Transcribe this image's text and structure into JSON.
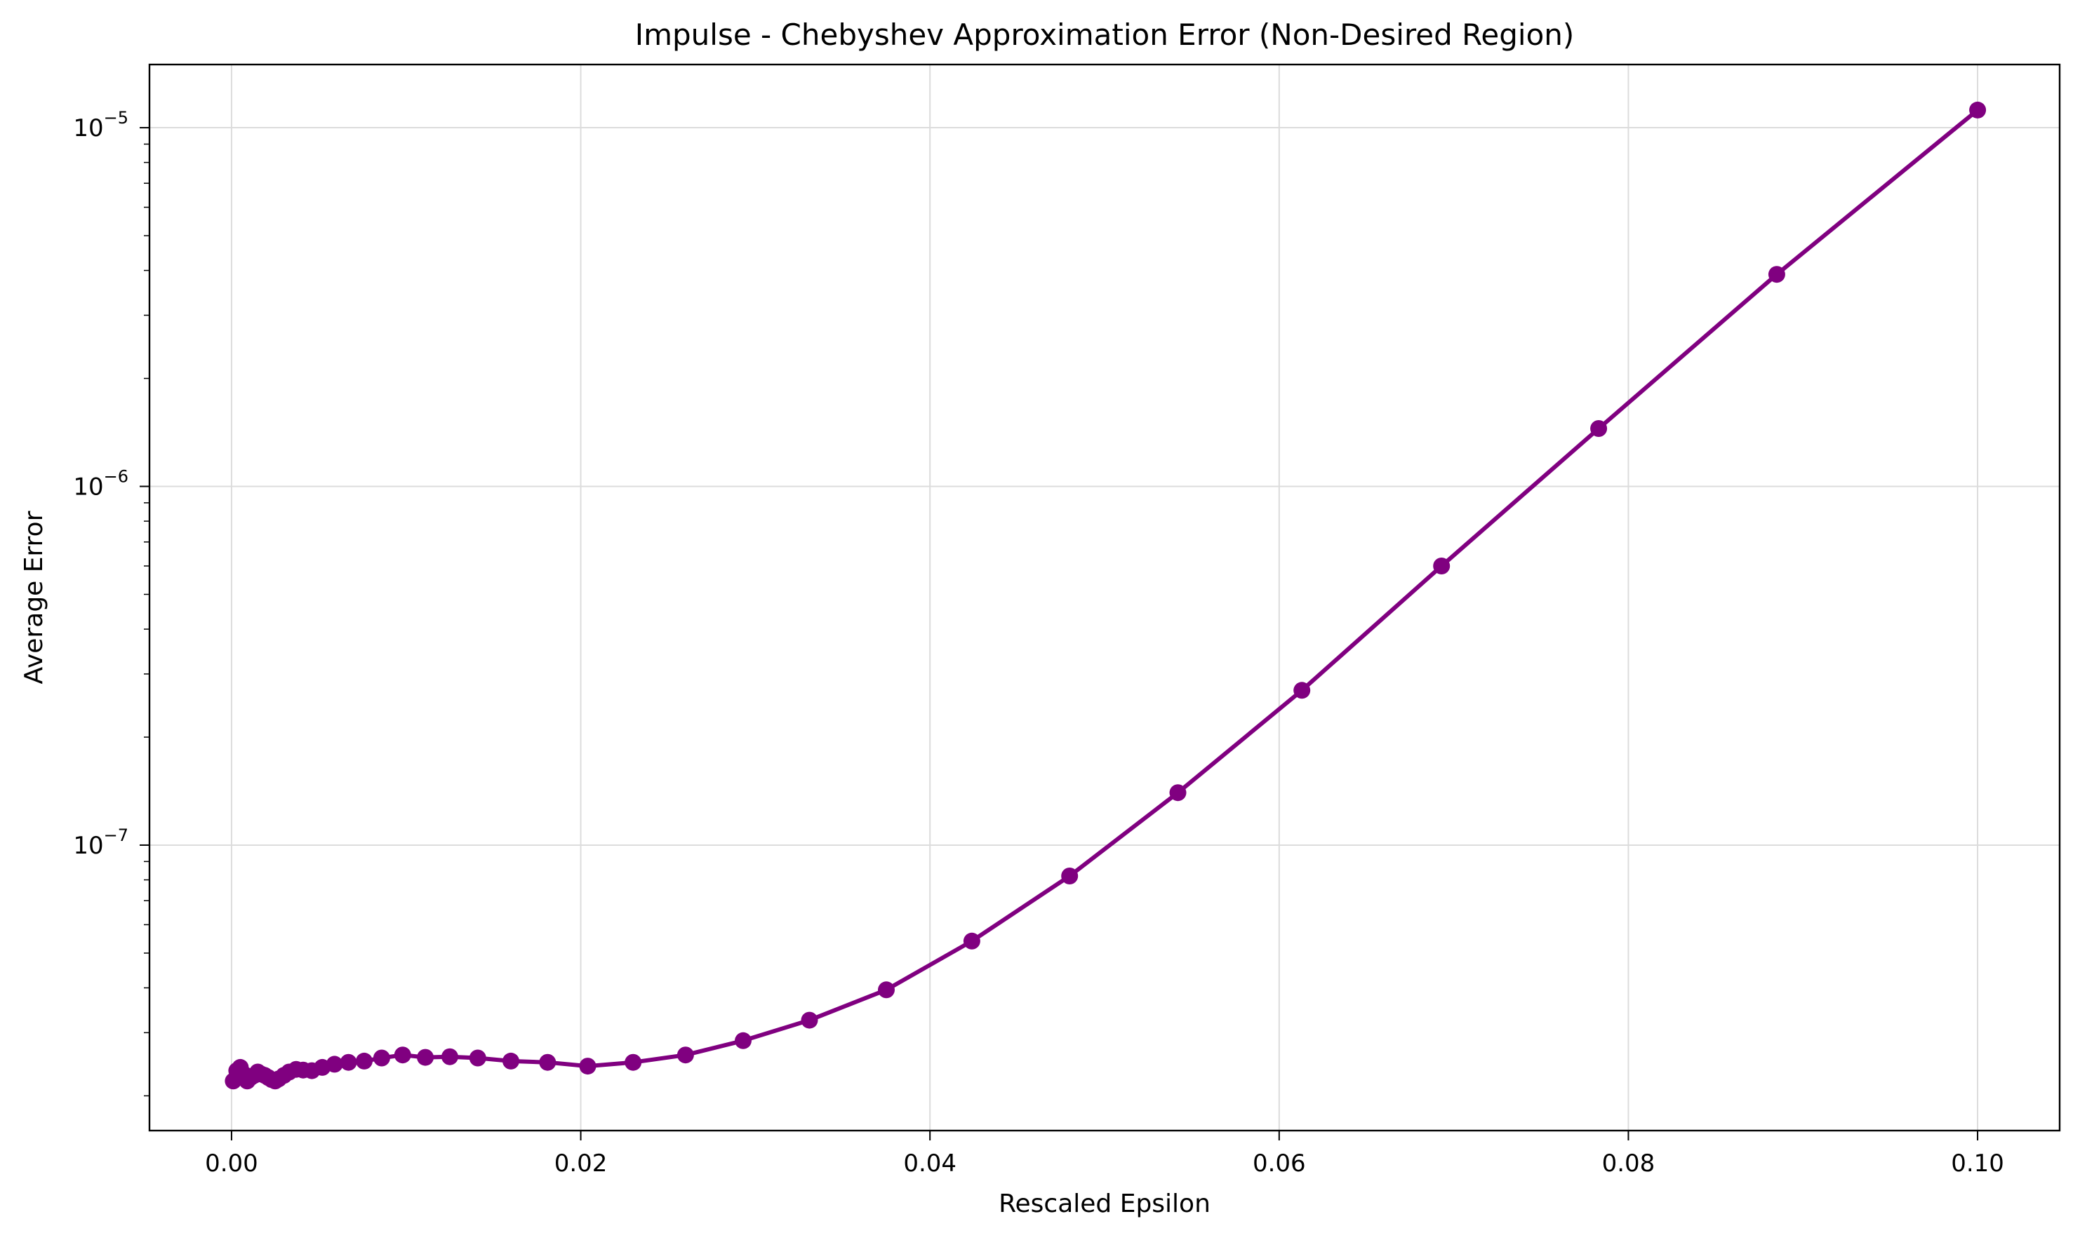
{
  "chart_data": {
    "type": "line",
    "title": "Impulse - Chebyshev Approximation Error (Non-Desired Region)",
    "xlabel": "Rescaled Epsilon",
    "ylabel": "Average Error",
    "xscale": "linear",
    "yscale": "log",
    "xlim": [
      -0.0047,
      0.1047
    ],
    "ylim": [
      1.6e-08,
      1.5e-05
    ],
    "grid": true,
    "legend": "none",
    "colors": {
      "series": "#800080"
    },
    "x_ticks": [
      {
        "value": 0.0,
        "label": "0.00"
      },
      {
        "value": 0.02,
        "label": "0.02"
      },
      {
        "value": 0.04,
        "label": "0.04"
      },
      {
        "value": 0.06,
        "label": "0.06"
      },
      {
        "value": 0.08,
        "label": "0.08"
      },
      {
        "value": 0.1,
        "label": "0.10"
      }
    ],
    "y_ticks": [
      {
        "value": 1e-07,
        "base": "10",
        "exponent": "−7"
      },
      {
        "value": 1e-06,
        "base": "10",
        "exponent": "−6"
      },
      {
        "value": 1e-05,
        "base": "10",
        "exponent": "−5"
      }
    ],
    "series": [
      {
        "x": [
          0.0001,
          0.0003,
          0.0005,
          0.0007,
          0.0009,
          0.0011,
          0.0013,
          0.0015,
          0.0017,
          0.0019,
          0.0021,
          0.0023,
          0.0025,
          0.0027,
          0.003,
          0.0033,
          0.0037,
          0.0041,
          0.0046,
          0.0052,
          0.0059,
          0.0067,
          0.0076,
          0.0086,
          0.0098,
          0.0111,
          0.0125,
          0.0141,
          0.016,
          0.0181,
          0.0204,
          0.023,
          0.026,
          0.0293,
          0.0331,
          0.0375,
          0.0424,
          0.048,
          0.0542,
          0.0613,
          0.0693,
          0.0783,
          0.0885,
          0.1
        ],
        "y": [
          2.2e-08,
          2.35e-08,
          2.4e-08,
          2.3e-08,
          2.2e-08,
          2.25e-08,
          2.28e-08,
          2.33e-08,
          2.3e-08,
          2.28e-08,
          2.25e-08,
          2.22e-08,
          2.2e-08,
          2.23e-08,
          2.28e-08,
          2.33e-08,
          2.37e-08,
          2.36e-08,
          2.35e-08,
          2.4e-08,
          2.45e-08,
          2.48e-08,
          2.5e-08,
          2.55e-08,
          2.6e-08,
          2.56e-08,
          2.57e-08,
          2.55e-08,
          2.5e-08,
          2.48e-08,
          2.42e-08,
          2.48e-08,
          2.6e-08,
          2.85e-08,
          3.25e-08,
          3.95e-08,
          5.4e-08,
          8.2e-08,
          1.4e-07,
          2.7e-07,
          6e-07,
          1.45e-06,
          3.9e-06,
          1.12e-05
        ]
      }
    ]
  }
}
